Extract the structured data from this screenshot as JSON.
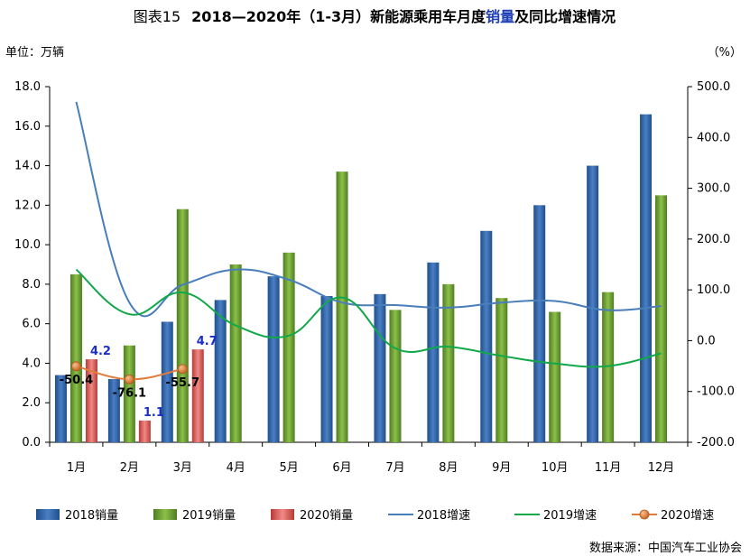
{
  "chart_data": {
    "type": "bar",
    "title_prefix": "图表15",
    "title_main": "2018—2020年（1-3月）新能源乘用车月度",
    "title_highlight": "销量",
    "title_suffix": "及同比增速情况",
    "left_unit": "单位：万辆",
    "right_unit": "（%）",
    "source": "数据来源：中国汽车工业协会",
    "categories": [
      "1月",
      "2月",
      "3月",
      "4月",
      "5月",
      "6月",
      "7月",
      "8月",
      "9月",
      "10月",
      "11月",
      "12月"
    ],
    "left_axis": {
      "min": 0,
      "max": 18,
      "step": 2,
      "tick_labels": [
        "0.0",
        "2.0",
        "4.0",
        "6.0",
        "8.0",
        "10.0",
        "12.0",
        "14.0",
        "16.0",
        "18.0"
      ]
    },
    "right_axis": {
      "min": -200,
      "max": 500,
      "step": 100,
      "tick_labels": [
        "-200.0",
        "-100.0",
        "0.0",
        "100.0",
        "200.0",
        "300.0",
        "400.0",
        "500.0"
      ]
    },
    "bar_series": [
      {
        "name": "2018销量",
        "color": "#2e5fa3",
        "values": [
          3.4,
          3.2,
          6.1,
          7.2,
          8.4,
          7.4,
          7.5,
          9.1,
          10.7,
          12.0,
          14.0,
          16.6
        ]
      },
      {
        "name": "2019销量",
        "color": "#6a9e32",
        "values": [
          8.5,
          4.9,
          11.8,
          9.0,
          9.6,
          13.7,
          6.7,
          8.0,
          7.3,
          6.6,
          7.6,
          12.5
        ]
      },
      {
        "name": "2020销量",
        "color": "#d9534f",
        "values": [
          4.2,
          1.1,
          4.7,
          null,
          null,
          null,
          null,
          null,
          null,
          null,
          null,
          null
        ]
      }
    ],
    "line_series": [
      {
        "name": "2018增速",
        "color": "#4a7ebb",
        "values": [
          470,
          75,
          110,
          140,
          120,
          75,
          70,
          65,
          75,
          78,
          60,
          68
        ]
      },
      {
        "name": "2019增速",
        "color": "#11a84a",
        "values": [
          140,
          52,
          95,
          30,
          10,
          85,
          -15,
          -12,
          -30,
          -45,
          -50,
          -25
        ]
      },
      {
        "name": "2020增速",
        "color": "#e07b39",
        "values": [
          -50.4,
          -76.1,
          -55.7,
          null,
          null,
          null,
          null,
          null,
          null,
          null,
          null,
          null
        ]
      }
    ],
    "data_labels": {
      "bar2020": [
        "4.2",
        "1.1",
        "4.7"
      ],
      "growth2020": [
        "-50.4",
        "-76.1",
        "-55.7"
      ]
    },
    "legend": [
      "2018销量",
      "2019销量",
      "2020销量",
      "2018增速",
      "2019增速",
      "2020增速"
    ],
    "grid": false,
    "legend_position": "bottom"
  }
}
